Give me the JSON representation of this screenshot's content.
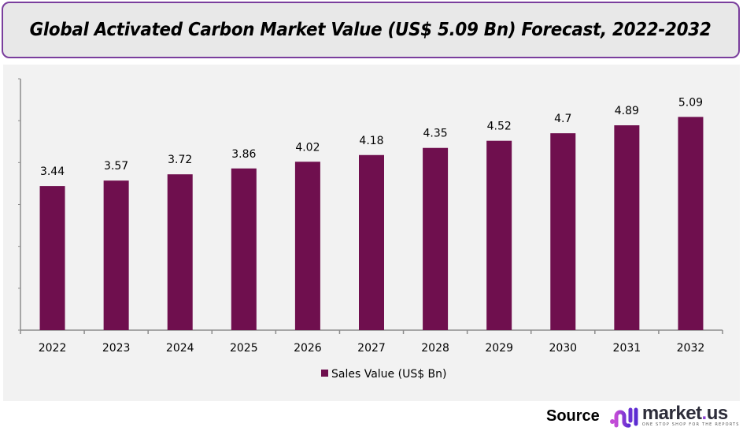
{
  "header": {
    "title": "Global Activated Carbon Market  Value (US$ 5.09 Bn) Forecast,  2022-2032"
  },
  "chart_data": {
    "type": "bar",
    "title": "Global Activated Carbon Market Value (US$ 5.09 Bn) Forecast, 2022-2032",
    "categories": [
      "2022",
      "2023",
      "2024",
      "2025",
      "2026",
      "2027",
      "2028",
      "2029",
      "2030",
      "2031",
      "2032"
    ],
    "series": [
      {
        "name": "Sales Value (US$ Bn)",
        "color": "#6f0f4e",
        "values": [
          3.44,
          3.57,
          3.72,
          3.86,
          4.02,
          4.18,
          4.35,
          4.52,
          4.7,
          4.89,
          5.09
        ],
        "labels": [
          "3.44",
          "3.57",
          "3.72",
          "3.86",
          "4.02",
          "4.18",
          "4.35",
          "4.52",
          "4.7",
          "4.89",
          "5.09"
        ]
      }
    ],
    "xlabel": "",
    "ylabel": "",
    "ylim": [
      0,
      6
    ],
    "y_ticks_labeled": false,
    "grid": false,
    "legend": "bottom-center"
  },
  "legend": {
    "label": "Sales Value (US$ Bn)"
  },
  "footer": {
    "source_label": "Source",
    "brand_name": "market",
    "brand_dot": ".",
    "brand_suffix": "us",
    "brand_tagline": "ONE STOP SHOP FOR THE REPORTS"
  }
}
